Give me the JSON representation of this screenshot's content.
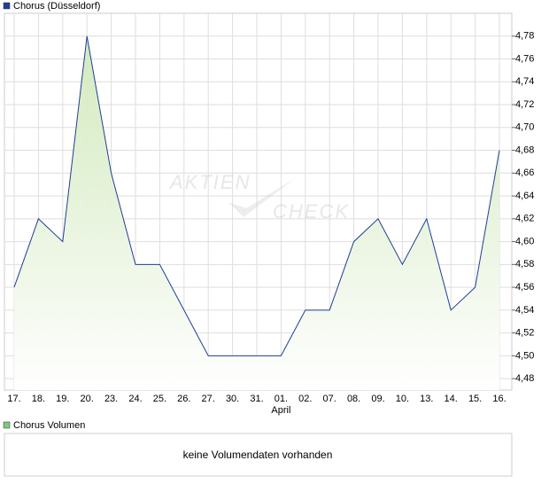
{
  "chart_data": {
    "type": "line",
    "legend_position": "top-left",
    "categories": [
      "17.",
      "18.",
      "19.",
      "20.",
      "23.",
      "24.",
      "25.",
      "26.",
      "27.",
      "30.",
      "31.",
      "01.",
      "02.",
      "07.",
      "08.",
      "09.",
      "10.",
      "13.",
      "14.",
      "15.",
      "16."
    ],
    "month_labels": [
      {
        "category": "01.",
        "label": "April"
      }
    ],
    "series": [
      {
        "name": "Chorus (Düsseldorf)",
        "color": "#1f3d99",
        "area_color": "#cfe8b8",
        "values": [
          4.56,
          4.62,
          4.6,
          4.78,
          4.66,
          4.58,
          4.58,
          4.54,
          4.5,
          4.5,
          4.5,
          4.5,
          4.54,
          4.54,
          4.6,
          4.62,
          4.58,
          4.62,
          4.54,
          4.56,
          4.68
        ]
      }
    ],
    "ylim": [
      4.47,
      4.8
    ],
    "yticks": [
      {
        "value": 4.48,
        "label": "4,48"
      },
      {
        "value": 4.5,
        "label": "4,50"
      },
      {
        "value": 4.52,
        "label": "4,52"
      },
      {
        "value": 4.54,
        "label": "4,54"
      },
      {
        "value": 4.56,
        "label": "4,56"
      },
      {
        "value": 4.58,
        "label": "4,58"
      },
      {
        "value": 4.6,
        "label": "4,60"
      },
      {
        "value": 4.62,
        "label": "4,62"
      },
      {
        "value": 4.64,
        "label": "4,64"
      },
      {
        "value": 4.66,
        "label": "4,66"
      },
      {
        "value": 4.68,
        "label": "4,68"
      },
      {
        "value": 4.7,
        "label": "4,70"
      },
      {
        "value": 4.72,
        "label": "4,72"
      },
      {
        "value": 4.74,
        "label": "4,74"
      },
      {
        "value": 4.76,
        "label": "4,76"
      },
      {
        "value": 4.78,
        "label": "4,78"
      }
    ],
    "grid": true,
    "watermark": [
      "AKTIEN",
      "CHECK"
    ]
  },
  "volume_panel": {
    "legend": "Chorus Volumen",
    "legend_color": "#7fc97f",
    "message": "keine Volumendaten vorhanden"
  }
}
